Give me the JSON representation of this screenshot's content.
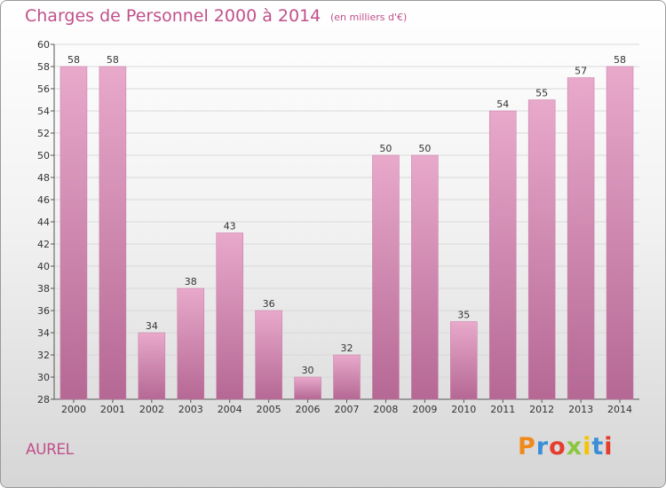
{
  "header": {
    "title": "Charges de Personnel 2000 à 2014",
    "subtitle": "(en milliers d'€)"
  },
  "footer": {
    "commune": "AUREL",
    "logo_text": "Proxiti",
    "logo_colors": [
      "#f08a1c",
      "#3a8fd6",
      "#e63c2e",
      "#8cc63f",
      "#f5c400",
      "#3a8fd6",
      "#e63c2e"
    ]
  },
  "chart_data": {
    "type": "bar",
    "title": "Charges de Personnel 2000 à 2014",
    "subtitle": "(en milliers d'€)",
    "categories": [
      "2000",
      "2001",
      "2002",
      "2003",
      "2004",
      "2005",
      "2006",
      "2007",
      "2008",
      "2009",
      "2010",
      "2011",
      "2012",
      "2013",
      "2014"
    ],
    "values": [
      58,
      58,
      34,
      38,
      43,
      36,
      30,
      32,
      50,
      50,
      35,
      54,
      55,
      57,
      58
    ],
    "xlabel": "",
    "ylabel": "",
    "ylim": [
      28,
      60
    ],
    "yticks": [
      28,
      30,
      32,
      34,
      36,
      38,
      40,
      42,
      44,
      46,
      48,
      50,
      52,
      54,
      56,
      58,
      60
    ],
    "grid": true,
    "bar_color": "#d586b2",
    "bar_color_light": "#e8a9cb",
    "bar_color_dark": "#b56894"
  }
}
